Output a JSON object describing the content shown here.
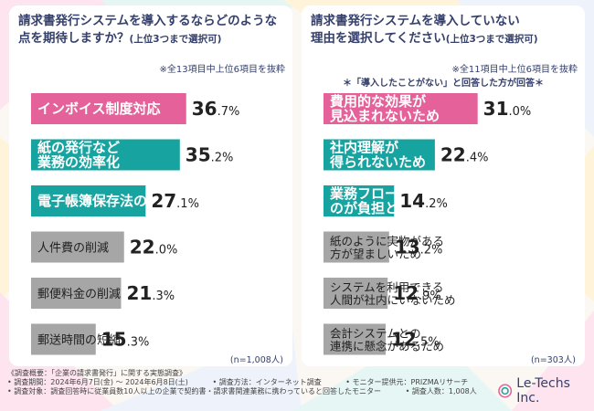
{
  "left_panel": {
    "title_line1": "請求書発行システムを導入するならどのような",
    "title_line2": "点を期待しますか？",
    "title_sub": "(上位3つまで選択可)",
    "note": "※全13項目中上位6項目を抜粋",
    "sample": "(n=1,008人)"
  },
  "right_panel": {
    "title_line1": "請求書発行システムを導入していない",
    "title_line2": "理由を選択してください",
    "title_sub": "(上位3つまで選択可)",
    "note": "※全11項目中上位6項目を抜粋",
    "condition": "＊「導入したことがない」と回答した方が回答＊",
    "sample": "(n=303人)"
  },
  "footer": {
    "line1": "《調査概要：「企業の請求書発行」に関する実態調査》",
    "period": "• 調査期間：2024年6月7日(金) ～ 2024年6月8日(土)",
    "method": "• 調査方法：インターネット調査",
    "provider": "• モニター提供元：PRIZMAリサーチ",
    "target": "• 調査対象：調査回答時に従業員数10人以上の企業で契約書・請求書関連業務に携わっていると回答したモニター",
    "count": "• 調査人数：1,008人"
  },
  "logo": {
    "text": "Le-Techs Inc."
  },
  "colors": {
    "pink": "#e4619a",
    "teal": "#17a3a0",
    "gray": "#a6a6a6",
    "navy": "#35406c"
  },
  "chart_data": [
    {
      "type": "bar",
      "orientation": "horizontal",
      "title": "請求書発行システムを導入するならどのような点を期待しますか？(上位3つまで選択可)",
      "unit": "%",
      "categories": [
        [
          "インボイス制度対応"
        ],
        [
          "紙の発行など",
          "業務の効率化"
        ],
        [
          "電子帳簿保存法の対応"
        ],
        [
          "人件費の削減"
        ],
        [
          "郵便料金の削減"
        ],
        [
          "郵送時間の短縮"
        ]
      ],
      "values": [
        36.7,
        35.2,
        27.1,
        22.0,
        21.3,
        15.3
      ],
      "value_labels": [
        "36.7",
        "35.2",
        "27.1",
        "22.0",
        "21.3",
        "15.3"
      ],
      "colors": [
        "pink",
        "teal",
        "teal",
        "gray",
        "gray",
        "gray"
      ],
      "xlim": [
        0,
        40
      ]
    },
    {
      "type": "bar",
      "orientation": "horizontal",
      "title": "請求書発行システムを導入していない理由を選択してください(上位3つまで選択可)",
      "unit": "%",
      "categories": [
        [
          "費用的な効果が",
          "見込まれないため"
        ],
        [
          "社内理解が",
          "得られないため"
        ],
        [
          "業務フローが変わる",
          "のが負担と思うため"
        ],
        [
          "紙のように実物がある",
          "方が望ましいため"
        ],
        [
          "システムを利用できる",
          "人間が社内にいないため"
        ],
        [
          "会計システムとの",
          "連携に懸念があるため"
        ]
      ],
      "values": [
        31.0,
        22.4,
        14.2,
        13.2,
        12.9,
        12.5
      ],
      "value_labels": [
        "31.0",
        "22.4",
        "14.2",
        "13.2",
        "12.9",
        "12.5"
      ],
      "colors": [
        "pink",
        "teal",
        "teal",
        "gray",
        "gray",
        "gray"
      ],
      "xlim": [
        0,
        34
      ]
    }
  ]
}
